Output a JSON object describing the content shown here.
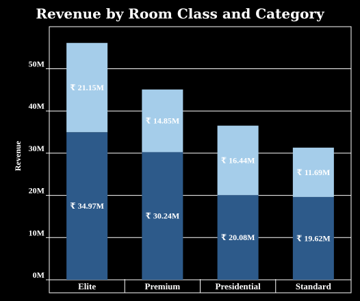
{
  "chart_data": {
    "type": "bar",
    "stacked": true,
    "title": "Revenue by Room Class and Category",
    "xlabel": "",
    "ylabel": "Revenue",
    "categories": [
      "Elite",
      "Premium",
      "Presidential",
      "Standard"
    ],
    "series": [
      {
        "values": [
          34.97,
          30.24,
          20.08,
          19.62
        ],
        "labels": [
          "₹ 34.97M",
          "₹ 30.24M",
          "₹ 20.08M",
          "₹ 19.62M"
        ],
        "color": "#2d5a8a"
      },
      {
        "values": [
          21.15,
          14.85,
          16.44,
          11.69
        ],
        "labels": [
          "₹ 21.15M",
          "₹ 14.85M",
          "₹ 16.44M",
          "₹ 11.69M"
        ],
        "color": "#a5cdea"
      }
    ],
    "ylim": [
      0,
      60
    ],
    "yticks": [
      0,
      10,
      20,
      30,
      40,
      50
    ],
    "ytick_labels": [
      "0M",
      "10M",
      "20M",
      "30M",
      "40M",
      "50M"
    ],
    "grid": true,
    "colors": {
      "background": "#000000",
      "gridline": "#ffffff",
      "text": "#ffffff"
    }
  }
}
